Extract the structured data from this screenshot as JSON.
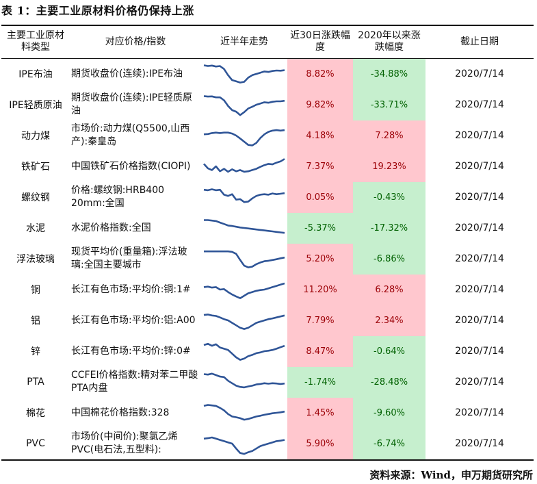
{
  "title": "表 1：主要工业原材料价格仍保持上涨",
  "headers": {
    "name": "主要工业原材料类型",
    "index": "对应价格/指数",
    "trend": "近半年走势",
    "chg30": "近30日涨跌幅度",
    "chg2020": "2020年以来涨跌幅度",
    "date": "截止日期"
  },
  "colors": {
    "spark": "#2f5597",
    "pos_bg": "#ffc7ce",
    "pos_fg": "#9c0006",
    "neg_bg": "#c6efce",
    "neg_fg": "#006100"
  },
  "rows": [
    {
      "name": "IPE布油",
      "index": "期货收盘价(连续):IPE布油",
      "chg30": "8.82%",
      "chg30_sign": "pos",
      "chg2020": "-34.88%",
      "chg2020_sign": "neg",
      "date": "2020/7/14",
      "spark": [
        0.85,
        0.82,
        0.84,
        0.8,
        0.82,
        0.7,
        0.45,
        0.25,
        0.2,
        0.15,
        0.18,
        0.35,
        0.45,
        0.5,
        0.55,
        0.6,
        0.58,
        0.62,
        0.64,
        0.63,
        0.65
      ]
    },
    {
      "name": "IPE轻质原油",
      "index": "期货收盘价(连续):IPE轻质原油",
      "chg30": "9.82%",
      "chg30_sign": "pos",
      "chg2020": "-33.71%",
      "chg2020_sign": "neg",
      "date": "2020/7/14",
      "spark": [
        0.85,
        0.83,
        0.84,
        0.8,
        0.8,
        0.68,
        0.45,
        0.28,
        0.22,
        0.08,
        0.2,
        0.35,
        0.42,
        0.5,
        0.55,
        0.6,
        0.58,
        0.62,
        0.64,
        0.64,
        0.66
      ]
    },
    {
      "name": "动力煤",
      "index": "市场价:动力煤(Q5500,山西产):秦皇岛",
      "chg30": "4.18%",
      "chg30_sign": "pos",
      "chg2020": "7.28%",
      "chg2020_sign": "pos",
      "date": "2020/7/14",
      "spark": [
        0.55,
        0.56,
        0.6,
        0.62,
        0.6,
        0.62,
        0.62,
        0.58,
        0.5,
        0.38,
        0.25,
        0.12,
        0.1,
        0.2,
        0.4,
        0.55,
        0.65,
        0.7,
        0.72,
        0.7,
        0.72
      ]
    },
    {
      "name": "铁矿石",
      "index": "中国铁矿石价格指数(CIOPI)",
      "chg30": "7.37%",
      "chg30_sign": "pos",
      "chg2020": "19.23%",
      "chg2020_sign": "pos",
      "date": "2020/7/14",
      "spark": [
        0.6,
        0.42,
        0.35,
        0.5,
        0.3,
        0.4,
        0.28,
        0.38,
        0.3,
        0.35,
        0.28,
        0.3,
        0.35,
        0.4,
        0.48,
        0.55,
        0.6,
        0.58,
        0.65,
        0.7,
        0.8
      ]
    },
    {
      "name": "螺纹钢",
      "index": "价格:螺纹钢:HRB400 20mm:全国",
      "chg30": "0.05%",
      "chg30_sign": "pos",
      "chg2020": "-0.43%",
      "chg2020_sign": "neg",
      "date": "2020/7/14",
      "spark": [
        0.8,
        0.78,
        0.82,
        0.78,
        0.8,
        0.6,
        0.55,
        0.62,
        0.4,
        0.42,
        0.3,
        0.32,
        0.45,
        0.55,
        0.6,
        0.62,
        0.6,
        0.65,
        0.62,
        0.64,
        0.66
      ]
    },
    {
      "name": "水泥",
      "index": "水泥价格指数:全国",
      "chg30": "-5.37%",
      "chg30_sign": "neg",
      "chg2020": "-17.32%",
      "chg2020_sign": "neg",
      "date": "2020/7/14",
      "spark": [
        0.82,
        0.82,
        0.8,
        0.78,
        0.72,
        0.66,
        0.6,
        0.58,
        0.55,
        0.52,
        0.5,
        0.48,
        0.46,
        0.44,
        0.42,
        0.4,
        0.38,
        0.36,
        0.34,
        0.32,
        0.3
      ]
    },
    {
      "name": "浮法玻璃",
      "index": "现货平均价(重量箱):浮法玻璃:全国主要城市",
      "chg30": "5.20%",
      "chg30_sign": "pos",
      "chg2020": "-6.86%",
      "chg2020_sign": "neg",
      "date": "2020/7/14",
      "spark": [
        0.8,
        0.8,
        0.8,
        0.8,
        0.8,
        0.8,
        0.8,
        0.78,
        0.7,
        0.45,
        0.22,
        0.15,
        0.18,
        0.28,
        0.35,
        0.4,
        0.42,
        0.45,
        0.48,
        0.52,
        0.55
      ]
    },
    {
      "name": "铜",
      "index": "长江有色市场:平均价:铜:1#",
      "chg30": "11.20%",
      "chg30_sign": "pos",
      "chg2020": "6.28%",
      "chg2020_sign": "pos",
      "date": "2020/7/14",
      "spark": [
        0.6,
        0.62,
        0.58,
        0.6,
        0.5,
        0.52,
        0.4,
        0.3,
        0.22,
        0.15,
        0.25,
        0.35,
        0.4,
        0.45,
        0.48,
        0.5,
        0.55,
        0.6,
        0.65,
        0.7,
        0.75
      ]
    },
    {
      "name": "铝",
      "index": "长江有色市场:平均价:铝:A00",
      "chg30": "7.79%",
      "chg30_sign": "pos",
      "chg2020": "2.34%",
      "chg2020_sign": "pos",
      "date": "2020/7/14",
      "spark": [
        0.72,
        0.74,
        0.7,
        0.68,
        0.62,
        0.55,
        0.5,
        0.4,
        0.3,
        0.2,
        0.15,
        0.2,
        0.3,
        0.4,
        0.45,
        0.5,
        0.55,
        0.58,
        0.62,
        0.66,
        0.7
      ]
    },
    {
      "name": "锌",
      "index": "长江有色市场:平均价:锌:0#",
      "chg30": "8.47%",
      "chg30_sign": "pos",
      "chg2020": "-0.64%",
      "chg2020_sign": "neg",
      "date": "2020/7/14",
      "spark": [
        0.75,
        0.8,
        0.72,
        0.78,
        0.65,
        0.6,
        0.55,
        0.4,
        0.25,
        0.15,
        0.2,
        0.3,
        0.35,
        0.42,
        0.45,
        0.5,
        0.52,
        0.55,
        0.6,
        0.66,
        0.72
      ]
    },
    {
      "name": "PTA",
      "index": "CCFEI价格指数:精对苯二甲酸PTA内盘",
      "chg30": "-1.74%",
      "chg30_sign": "neg",
      "chg2020": "-28.48%",
      "chg2020_sign": "neg",
      "date": "2020/7/14",
      "spark": [
        0.82,
        0.8,
        0.84,
        0.78,
        0.72,
        0.7,
        0.55,
        0.45,
        0.35,
        0.3,
        0.28,
        0.32,
        0.35,
        0.4,
        0.42,
        0.45,
        0.43,
        0.45,
        0.44,
        0.42,
        0.44
      ]
    },
    {
      "name": "棉花",
      "index": "中国棉花价格指数:328",
      "chg30": "1.45%",
      "chg30_sign": "pos",
      "chg2020": "-9.60%",
      "chg2020_sign": "neg",
      "date": "2020/7/14",
      "spark": [
        0.78,
        0.82,
        0.8,
        0.78,
        0.7,
        0.6,
        0.45,
        0.35,
        0.32,
        0.28,
        0.22,
        0.25,
        0.3,
        0.35,
        0.38,
        0.42,
        0.45,
        0.48,
        0.5,
        0.52,
        0.55
      ]
    },
    {
      "name": "PVC",
      "index": "市场价(中间价):聚氯乙烯PVC(电石法,五型料):",
      "chg30": "5.90%",
      "chg30_sign": "pos",
      "chg2020": "-6.74%",
      "chg2020_sign": "neg",
      "date": "2020/7/14",
      "spark": [
        0.7,
        0.72,
        0.75,
        0.7,
        0.65,
        0.6,
        0.55,
        0.5,
        0.3,
        0.12,
        0.08,
        0.15,
        0.2,
        0.3,
        0.4,
        0.45,
        0.5,
        0.55,
        0.6,
        0.62,
        0.65
      ]
    }
  ],
  "source": "资料来源：Wind，申万期货研究所"
}
